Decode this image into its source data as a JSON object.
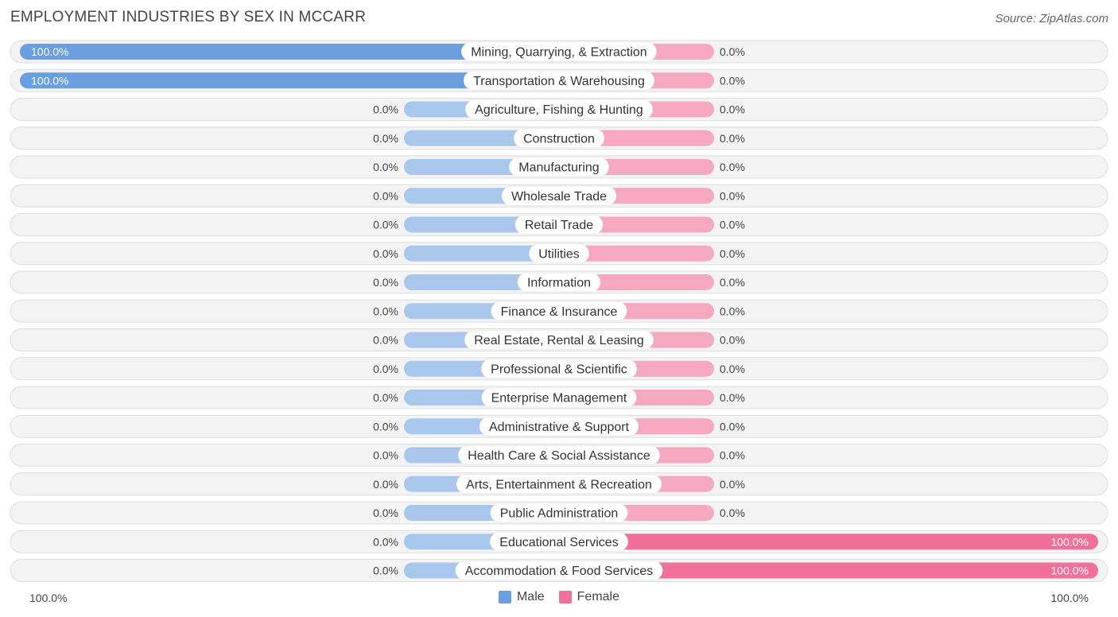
{
  "title": "EMPLOYMENT INDUSTRIES BY SEX IN MCCARR",
  "source": "Source: ZipAtlas.com",
  "legend": {
    "male": "Male",
    "female": "Female"
  },
  "axis": {
    "left": "100.0%",
    "right": "100.0%"
  },
  "colors": {
    "male_strong": "#6a9fdf",
    "male_light": "#a9c7ec",
    "female_strong": "#f07099",
    "female_light": "#f6a8c1",
    "row_bg": "#f3f3f3",
    "row_border": "#dddddd"
  },
  "chart_data": {
    "type": "bar",
    "orientation": "horizontal-diverging",
    "xlim": [
      -100,
      100
    ],
    "categories": [
      "Mining, Quarrying, & Extraction",
      "Transportation & Warehousing",
      "Agriculture, Fishing & Hunting",
      "Construction",
      "Manufacturing",
      "Wholesale Trade",
      "Retail Trade",
      "Utilities",
      "Information",
      "Finance & Insurance",
      "Real Estate, Rental & Leasing",
      "Professional & Scientific",
      "Enterprise Management",
      "Administrative & Support",
      "Health Care & Social Assistance",
      "Arts, Entertainment & Recreation",
      "Public Administration",
      "Educational Services",
      "Accommodation & Food Services"
    ],
    "series": [
      {
        "name": "Male",
        "values": [
          100,
          100,
          0,
          0,
          0,
          0,
          0,
          0,
          0,
          0,
          0,
          0,
          0,
          0,
          0,
          0,
          0,
          0,
          0
        ],
        "labels": [
          "100.0%",
          "100.0%",
          "0.0%",
          "0.0%",
          "0.0%",
          "0.0%",
          "0.0%",
          "0.0%",
          "0.0%",
          "0.0%",
          "0.0%",
          "0.0%",
          "0.0%",
          "0.0%",
          "0.0%",
          "0.0%",
          "0.0%",
          "0.0%",
          "0.0%"
        ]
      },
      {
        "name": "Female",
        "values": [
          0,
          0,
          0,
          0,
          0,
          0,
          0,
          0,
          0,
          0,
          0,
          0,
          0,
          0,
          0,
          0,
          0,
          100,
          100
        ],
        "labels": [
          "0.0%",
          "0.0%",
          "0.0%",
          "0.0%",
          "0.0%",
          "0.0%",
          "0.0%",
          "0.0%",
          "0.0%",
          "0.0%",
          "0.0%",
          "0.0%",
          "0.0%",
          "0.0%",
          "0.0%",
          "0.0%",
          "0.0%",
          "100.0%",
          "100.0%"
        ]
      }
    ]
  }
}
